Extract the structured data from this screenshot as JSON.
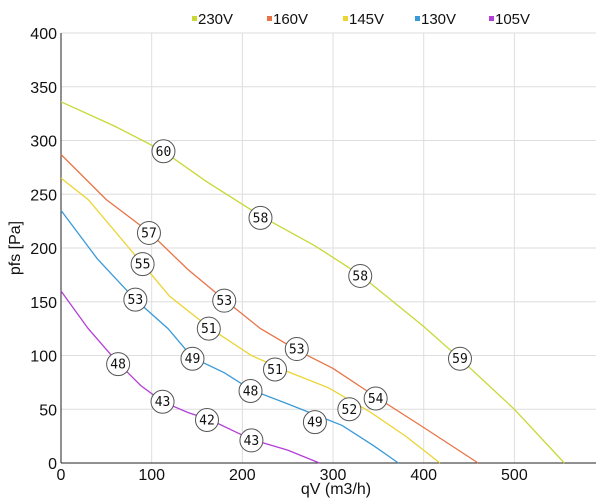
{
  "chart_data": {
    "type": "line",
    "xlabel": "qV (m3/h)",
    "ylabel": "pfs [Pa]",
    "xlim": [
      0,
      590
    ],
    "ylim": [
      0,
      400
    ],
    "x_ticks": [
      0,
      100,
      200,
      300,
      400,
      500
    ],
    "y_ticks": [
      0,
      50,
      100,
      150,
      200,
      250,
      300,
      350,
      400
    ],
    "grid": true,
    "legend_position": "top-center",
    "series": [
      {
        "name": "230V",
        "color": "#c8d836",
        "points": [
          [
            0,
            336
          ],
          [
            60,
            313
          ],
          [
            113,
            290
          ],
          [
            160,
            262
          ],
          [
            220,
            230
          ],
          [
            280,
            202
          ],
          [
            330,
            175
          ],
          [
            400,
            127
          ],
          [
            440,
            97
          ],
          [
            500,
            50
          ],
          [
            555,
            0
          ]
        ],
        "labels": [
          {
            "x": 113,
            "y": 290,
            "text": "60"
          },
          {
            "x": 220,
            "y": 228,
            "text": "58"
          },
          {
            "x": 330,
            "y": 174,
            "text": "58"
          },
          {
            "x": 440,
            "y": 97,
            "text": "59"
          }
        ]
      },
      {
        "name": "160V",
        "color": "#e87446",
        "points": [
          [
            0,
            287
          ],
          [
            50,
            245
          ],
          [
            97,
            215
          ],
          [
            140,
            180
          ],
          [
            180,
            152
          ],
          [
            220,
            125
          ],
          [
            260,
            105
          ],
          [
            300,
            88
          ],
          [
            350,
            60
          ],
          [
            400,
            33
          ],
          [
            460,
            0
          ]
        ],
        "labels": [
          {
            "x": 97,
            "y": 214,
            "text": "57"
          },
          {
            "x": 180,
            "y": 151,
            "text": "53"
          },
          {
            "x": 260,
            "y": 106,
            "text": "53"
          },
          {
            "x": 347,
            "y": 60,
            "text": "54"
          }
        ]
      },
      {
        "name": "145V",
        "color": "#ecd433",
        "points": [
          [
            0,
            265
          ],
          [
            30,
            245
          ],
          [
            90,
            185
          ],
          [
            120,
            155
          ],
          [
            165,
            125
          ],
          [
            210,
            100
          ],
          [
            250,
            85
          ],
          [
            295,
            70
          ],
          [
            340,
            48
          ],
          [
            380,
            25
          ],
          [
            418,
            0
          ]
        ],
        "labels": [
          {
            "x": 90,
            "y": 185,
            "text": "55"
          },
          {
            "x": 163,
            "y": 125,
            "text": "51"
          },
          {
            "x": 236,
            "y": 87,
            "text": "51"
          },
          {
            "x": 318,
            "y": 50,
            "text": "52"
          }
        ]
      },
      {
        "name": "130V",
        "color": "#3a9ad8",
        "points": [
          [
            0,
            235
          ],
          [
            40,
            190
          ],
          [
            82,
            152
          ],
          [
            118,
            125
          ],
          [
            145,
            98
          ],
          [
            180,
            84
          ],
          [
            210,
            68
          ],
          [
            250,
            55
          ],
          [
            280,
            45
          ],
          [
            310,
            35
          ],
          [
            345,
            16
          ],
          [
            372,
            0
          ]
        ],
        "labels": [
          {
            "x": 82,
            "y": 152,
            "text": "53"
          },
          {
            "x": 145,
            "y": 97,
            "text": "49"
          },
          {
            "x": 209,
            "y": 67,
            "text": "48"
          },
          {
            "x": 280,
            "y": 38,
            "text": "49"
          }
        ]
      },
      {
        "name": "105V",
        "color": "#b33fd6",
        "points": [
          [
            0,
            160
          ],
          [
            30,
            125
          ],
          [
            63,
            93
          ],
          [
            88,
            72
          ],
          [
            112,
            57
          ],
          [
            140,
            47
          ],
          [
            165,
            40
          ],
          [
            210,
            22
          ],
          [
            250,
            12
          ],
          [
            285,
            0
          ]
        ],
        "labels": [
          {
            "x": 63,
            "y": 92,
            "text": "48"
          },
          {
            "x": 112,
            "y": 57,
            "text": "43"
          },
          {
            "x": 161,
            "y": 40,
            "text": "42"
          },
          {
            "x": 210,
            "y": 21,
            "text": "43"
          }
        ]
      }
    ]
  }
}
